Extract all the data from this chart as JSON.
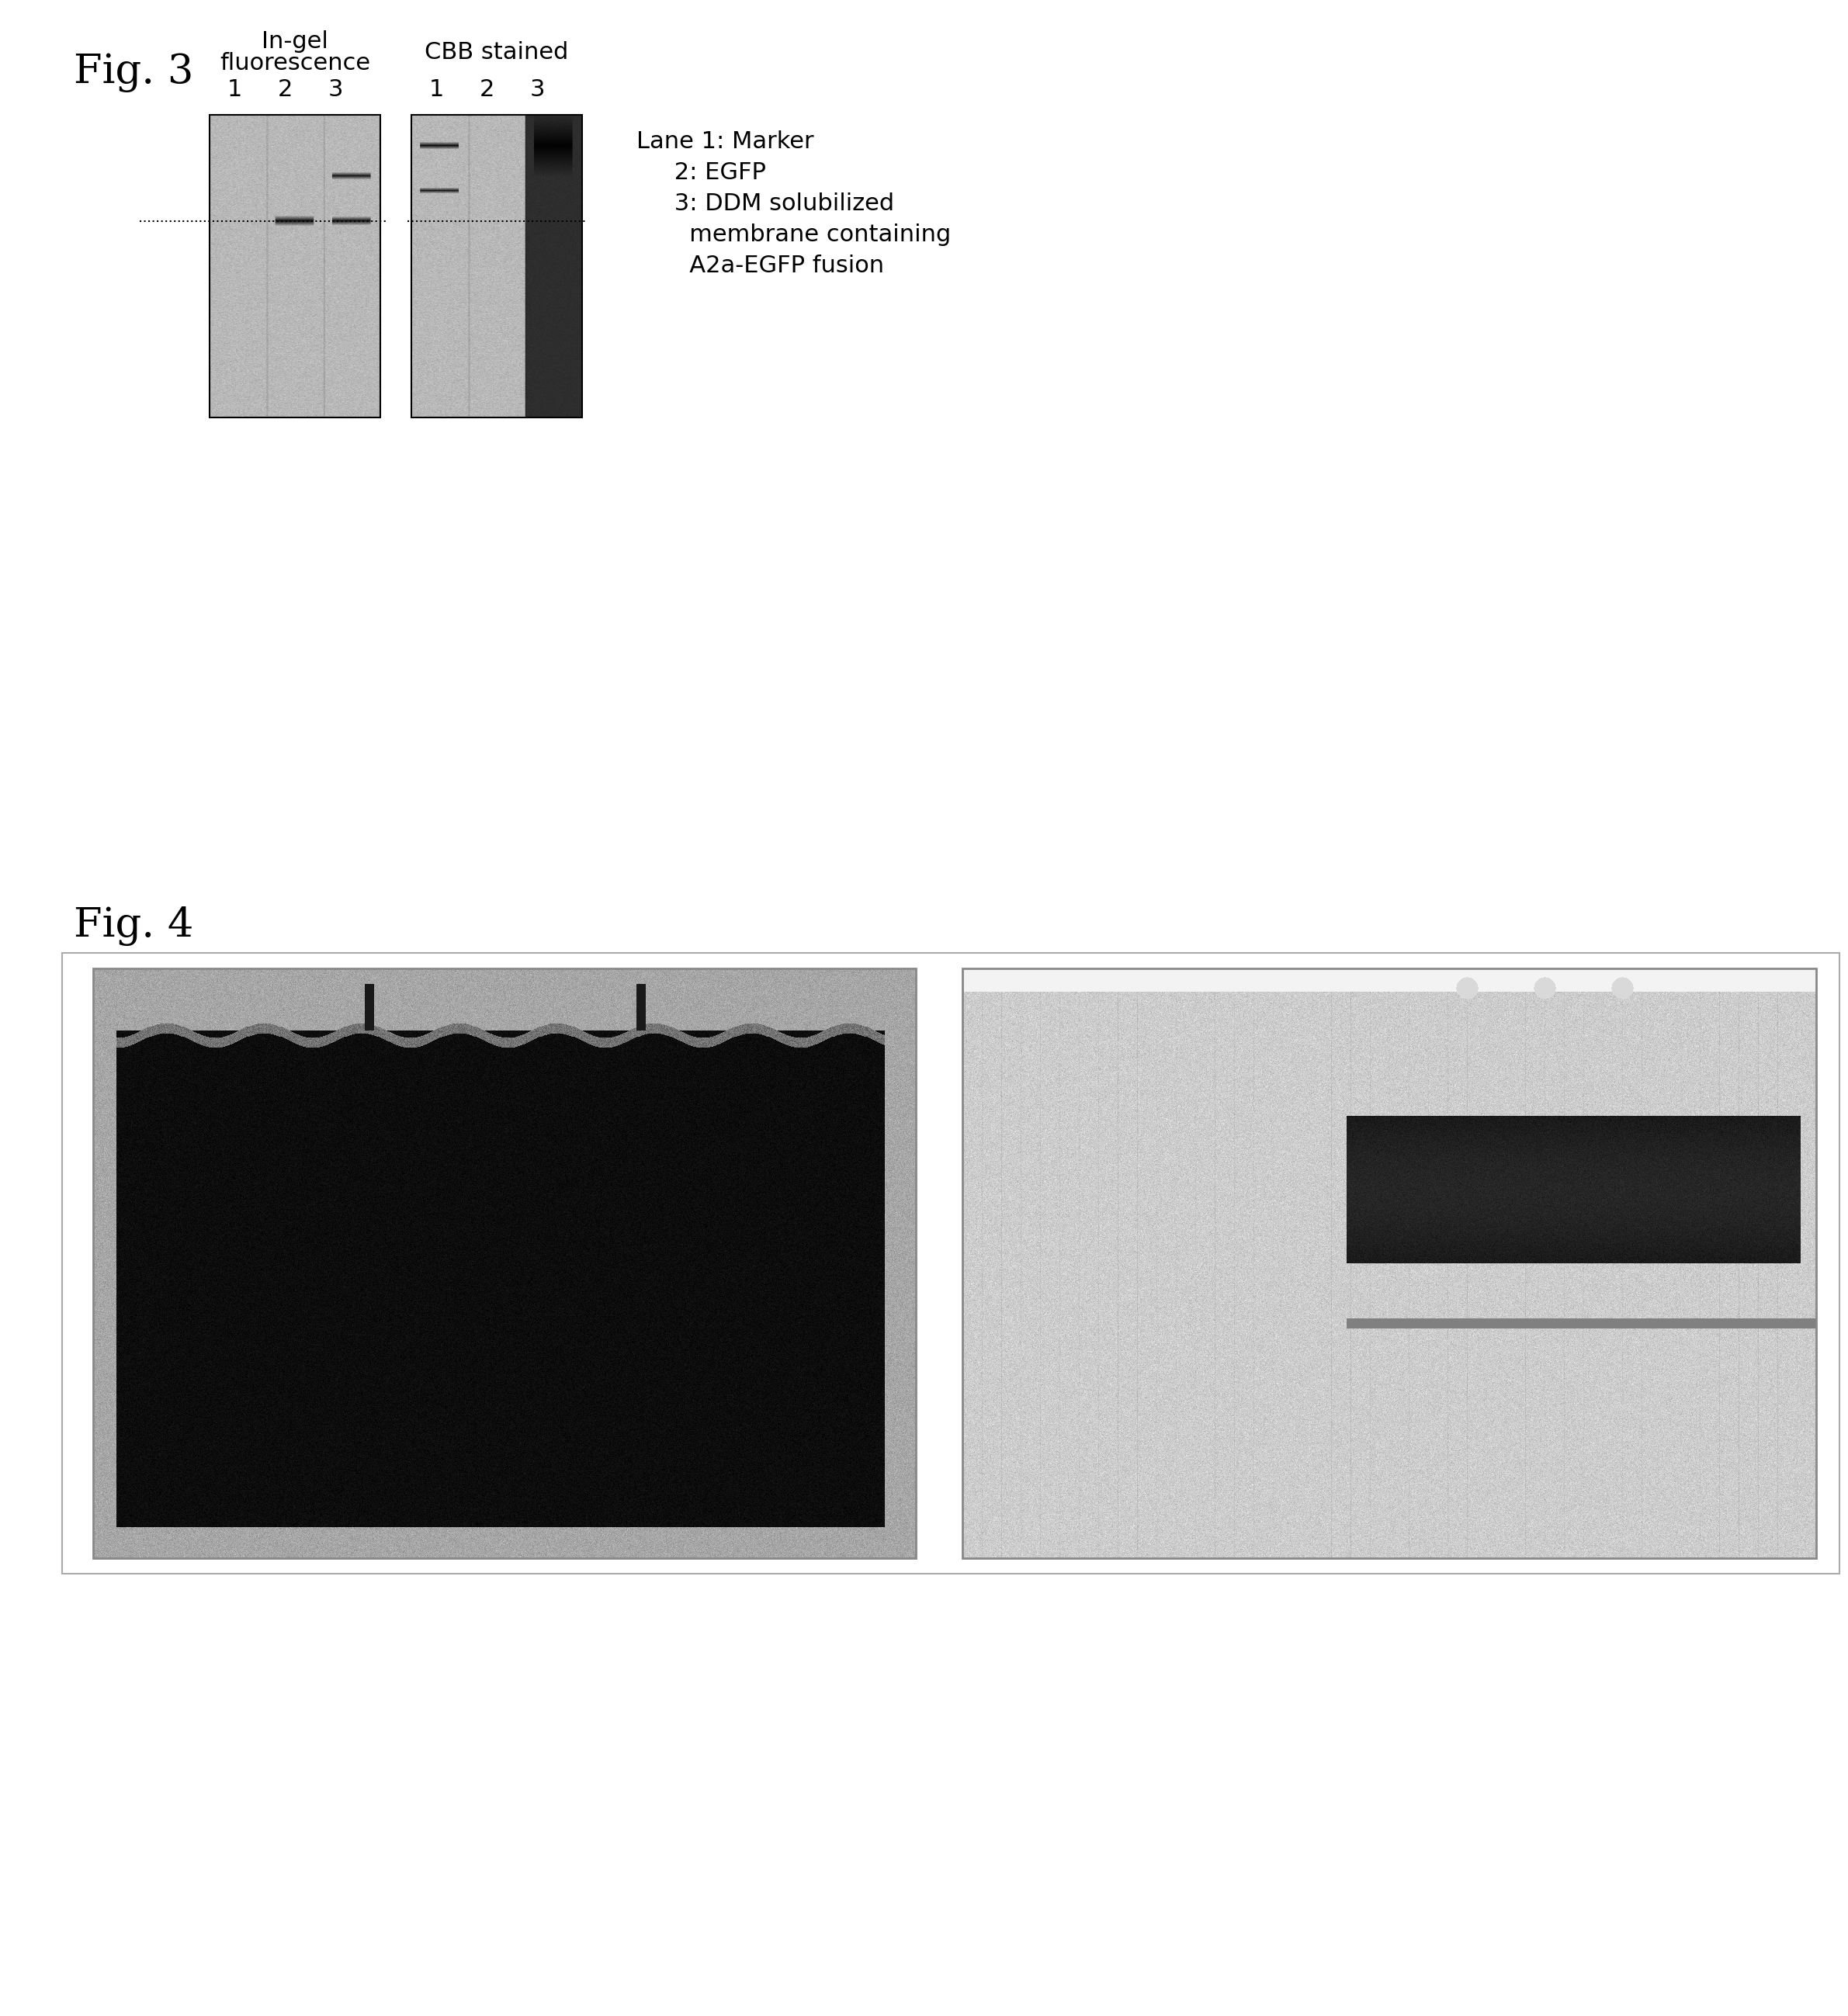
{
  "fig3_label": "Fig. 3",
  "fig4_label": "Fig. 4",
  "fig3_subtitle1": "In-gel",
  "fig3_subtitle2": "fluorescence",
  "fig3_subtitle3": "CBB stained",
  "fig3_lane_labels": [
    "1",
    "2",
    "3",
    "1",
    "2",
    "3"
  ],
  "legend_lines": [
    "Lane 1: Marker",
    "     2: EGFP",
    "     3: DDM solubilized",
    "       membrane containing",
    "       A2a-EGFP fusion"
  ],
  "bg_color": "#ffffff",
  "fig3_gel1_color": "#c8c8c8",
  "fig3_gel2_color": "#d0d0d0",
  "font_color": "#000000"
}
